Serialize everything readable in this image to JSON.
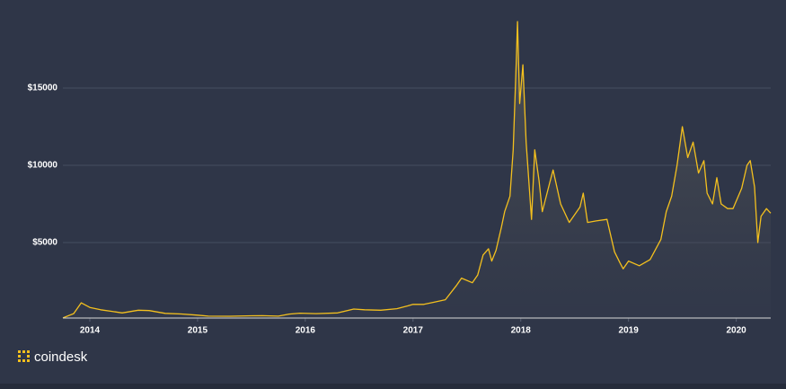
{
  "chart_data": {
    "type": "area-line",
    "brand": "coindesk",
    "color": "#f4c01e",
    "x": [
      2013.75,
      2013.85,
      2013.92,
      2014.0,
      2014.1,
      2014.2,
      2014.3,
      2014.45,
      2014.55,
      2014.7,
      2014.85,
      2015.0,
      2015.1,
      2015.3,
      2015.5,
      2015.6,
      2015.75,
      2015.85,
      2015.95,
      2016.1,
      2016.3,
      2016.45,
      2016.55,
      2016.7,
      2016.85,
      2016.95,
      2017.0,
      2017.1,
      2017.2,
      2017.3,
      2017.4,
      2017.45,
      2017.55,
      2017.6,
      2017.65,
      2017.7,
      2017.73,
      2017.77,
      2017.82,
      2017.85,
      2017.9,
      2017.93,
      2017.96,
      2017.97,
      2017.99,
      2018.02,
      2018.05,
      2018.08,
      2018.1,
      2018.13,
      2018.17,
      2018.2,
      2018.27,
      2018.3,
      2018.37,
      2018.45,
      2018.55,
      2018.58,
      2018.62,
      2018.7,
      2018.8,
      2018.87,
      2018.92,
      2018.95,
      2019.0,
      2019.1,
      2019.2,
      2019.3,
      2019.35,
      2019.4,
      2019.45,
      2019.5,
      2019.55,
      2019.6,
      2019.65,
      2019.7,
      2019.73,
      2019.78,
      2019.82,
      2019.86,
      2019.92,
      2019.97,
      2020.05,
      2020.1,
      2020.13,
      2020.17,
      2020.2,
      2020.23,
      2020.28,
      2020.32
    ],
    "values": [
      130,
      400,
      1100,
      800,
      650,
      550,
      450,
      620,
      600,
      420,
      380,
      300,
      240,
      230,
      260,
      270,
      240,
      370,
      430,
      400,
      450,
      700,
      650,
      620,
      720,
      900,
      1000,
      1000,
      1150,
      1300,
      2200,
      2700,
      2400,
      2900,
      4200,
      4600,
      3800,
      4500,
      6000,
      7000,
      8000,
      11000,
      17000,
      19300,
      14000,
      16500,
      11500,
      8500,
      6500,
      11000,
      9000,
      7000,
      8900,
      9700,
      7500,
      6300,
      7300,
      8200,
      6300,
      6400,
      6500,
      4400,
      3700,
      3300,
      3800,
      3500,
      3900,
      5200,
      7000,
      8000,
      10000,
      12500,
      10500,
      11500,
      9500,
      10300,
      8200,
      7500,
      9200,
      7500,
      7200,
      7200,
      8500,
      10000,
      10300,
      8600,
      5000,
      6700,
      7200,
      6900
    ],
    "xlim": [
      2013.75,
      2020.32
    ],
    "xticks": [
      2014,
      2015,
      2016,
      2017,
      2018,
      2019,
      2020
    ],
    "ylim": [
      0,
      20000
    ],
    "yticks": [
      {
        "value": 5000,
        "label": "$5000"
      },
      {
        "value": 10000,
        "label": "$10000"
      },
      {
        "value": 15000,
        "label": "$15000"
      }
    ],
    "grid": true
  }
}
